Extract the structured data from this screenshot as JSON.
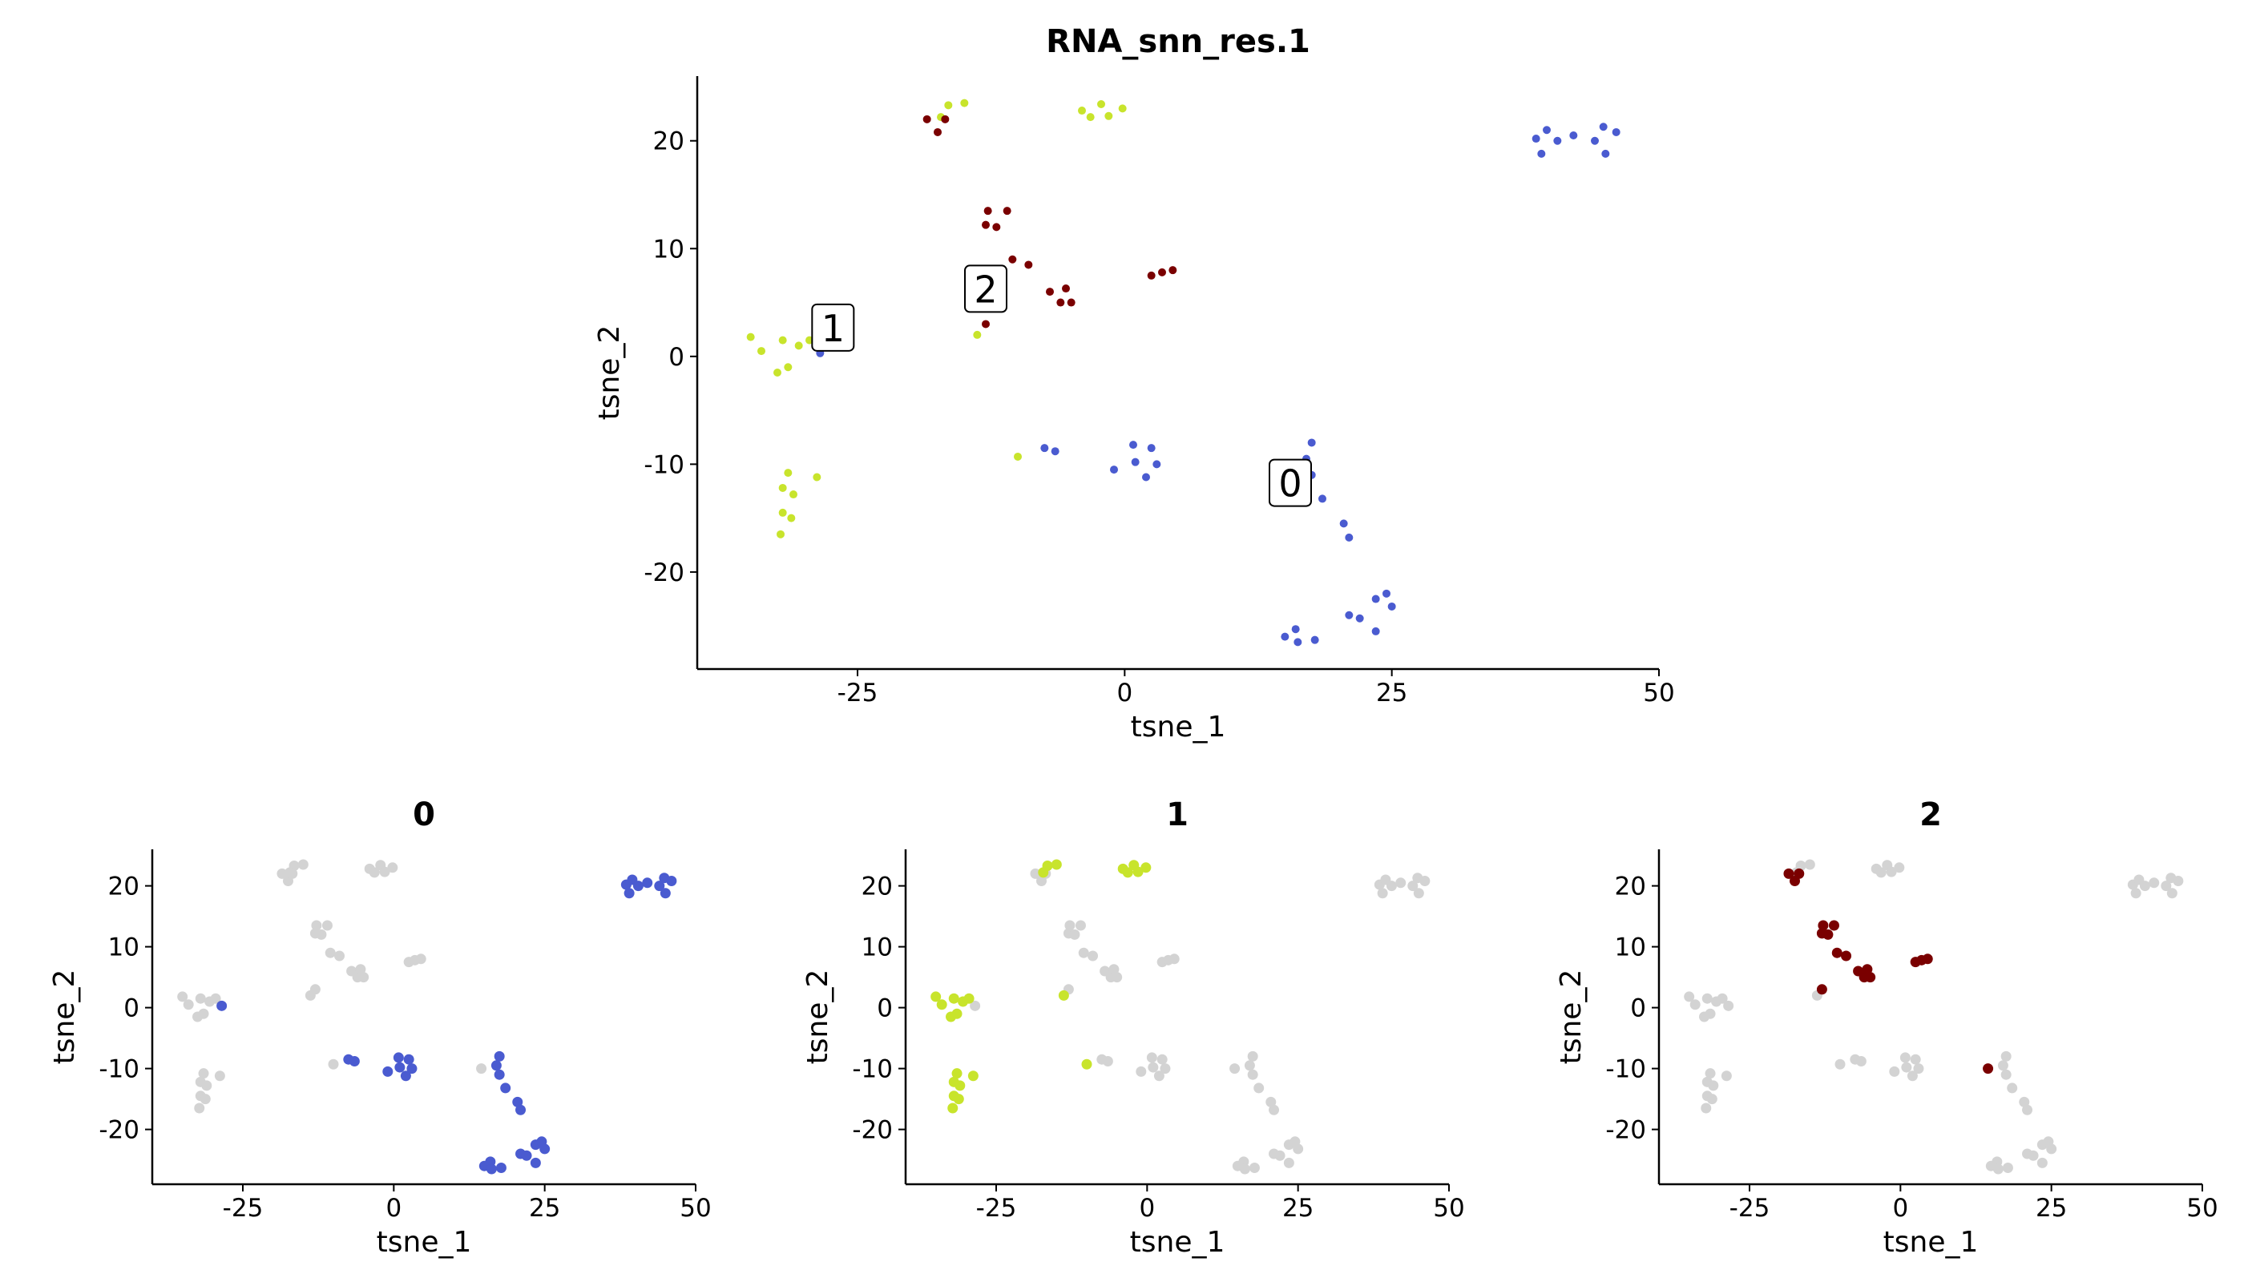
{
  "chart_data": [
    {
      "type": "scatter",
      "title": "RNA_snn_res.1",
      "xlabel": "tsne_1",
      "ylabel": "tsne_2",
      "xlim": [
        -40,
        50
      ],
      "ylim": [
        -29,
        26
      ],
      "xticks": [
        -25,
        0,
        25,
        50
      ],
      "xtick_labels": [
        "-25",
        "0",
        "25",
        "50"
      ],
      "yticks": [
        -20,
        -10,
        0,
        10,
        20
      ],
      "ytick_labels": [
        "-20",
        "-10",
        "0",
        "10",
        "20"
      ],
      "colors": {
        "0": "#4a5bd0",
        "1": "#c8e42c",
        "2": "#7a0000",
        "background": "#d3d3d3"
      },
      "cluster_labels": [
        {
          "text": "0",
          "x": 15.5,
          "y": -11.8
        },
        {
          "text": "1",
          "x": -27.3,
          "y": 2.6
        },
        {
          "text": "2",
          "x": -13.0,
          "y": 6.2
        }
      ],
      "series": [
        {
          "cluster": "0",
          "points": [
            [
              38.5,
              20.2
            ],
            [
              39,
              18.8
            ],
            [
              39.5,
              21
            ],
            [
              40.5,
              20
            ],
            [
              42,
              20.5
            ],
            [
              44,
              20
            ],
            [
              44.8,
              21.3
            ],
            [
              45,
              18.8
            ],
            [
              46,
              20.8
            ],
            [
              -28.5,
              0.3
            ],
            [
              -6.5,
              -8.8
            ],
            [
              -7.5,
              -8.5
            ],
            [
              -1,
              -10.5
            ],
            [
              0.8,
              -8.2
            ],
            [
              1,
              -9.8
            ],
            [
              2,
              -11.2
            ],
            [
              2.5,
              -8.5
            ],
            [
              3,
              -10
            ],
            [
              17.5,
              -8
            ],
            [
              17,
              -9.5
            ],
            [
              17.5,
              -11
            ],
            [
              18.5,
              -13.2
            ],
            [
              20.5,
              -15.5
            ],
            [
              21,
              -16.8
            ],
            [
              15,
              -26
            ],
            [
              16,
              -25.3
            ],
            [
              16.2,
              -26.5
            ],
            [
              17.8,
              -26.3
            ],
            [
              21,
              -24
            ],
            [
              22,
              -24.3
            ],
            [
              23.5,
              -25.5
            ],
            [
              23.5,
              -22.5
            ],
            [
              24.5,
              -22
            ],
            [
              25,
              -23.2
            ]
          ]
        },
        {
          "cluster": "1",
          "points": [
            [
              -16.5,
              23.3
            ],
            [
              -15,
              23.5
            ],
            [
              -17.2,
              22.2
            ],
            [
              -4,
              22.8
            ],
            [
              -3.2,
              22.2
            ],
            [
              -2.2,
              23.4
            ],
            [
              -1.5,
              22.3
            ],
            [
              -0.2,
              23
            ],
            [
              -35,
              1.8
            ],
            [
              -34,
              0.5
            ],
            [
              -32.5,
              -1.5
            ],
            [
              -32,
              1.5
            ],
            [
              -31.5,
              -1
            ],
            [
              -30.5,
              1
            ],
            [
              -29.5,
              1.5
            ],
            [
              -13.8,
              2
            ],
            [
              -10,
              -9.3
            ],
            [
              -31.5,
              -10.8
            ],
            [
              -32,
              -12.2
            ],
            [
              -31,
              -12.8
            ],
            [
              -28.8,
              -11.2
            ],
            [
              -32,
              -14.5
            ],
            [
              -31.2,
              -15
            ],
            [
              -32.2,
              -16.5
            ]
          ]
        },
        {
          "cluster": "2",
          "points": [
            [
              -18.5,
              22
            ],
            [
              -17.5,
              20.8
            ],
            [
              -16.8,
              22
            ],
            [
              -12.8,
              13.5
            ],
            [
              -13,
              12.2
            ],
            [
              -12,
              12
            ],
            [
              -11,
              13.5
            ],
            [
              -10.5,
              9
            ],
            [
              -9,
              8.5
            ],
            [
              -7,
              6
            ],
            [
              -6,
              5
            ],
            [
              -5.5,
              6.3
            ],
            [
              -5,
              5
            ],
            [
              -13,
              3
            ],
            [
              2.5,
              7.5
            ],
            [
              3.5,
              7.8
            ],
            [
              4.5,
              8
            ],
            [
              14.5,
              -10
            ]
          ]
        }
      ]
    },
    {
      "type": "scatter",
      "title": "0",
      "highlight": "0",
      "xlabel": "tsne_1",
      "ylabel": "tsne_2"
    },
    {
      "type": "scatter",
      "title": "1",
      "highlight": "1",
      "xlabel": "tsne_1",
      "ylabel": "tsne_2"
    },
    {
      "type": "scatter",
      "title": "2",
      "highlight": "2",
      "xlabel": "tsne_1",
      "ylabel": "tsne_2"
    }
  ]
}
